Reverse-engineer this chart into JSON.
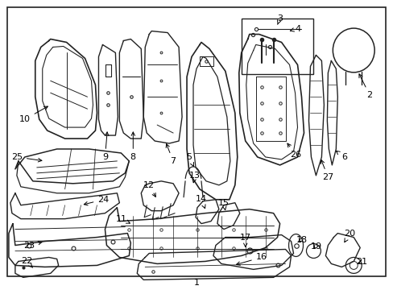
{
  "bg_color": "#ffffff",
  "border_color": "#000000",
  "line_color": "#222222",
  "text_color": "#000000",
  "fig_width": 4.89,
  "fig_height": 3.6,
  "dpi": 100
}
